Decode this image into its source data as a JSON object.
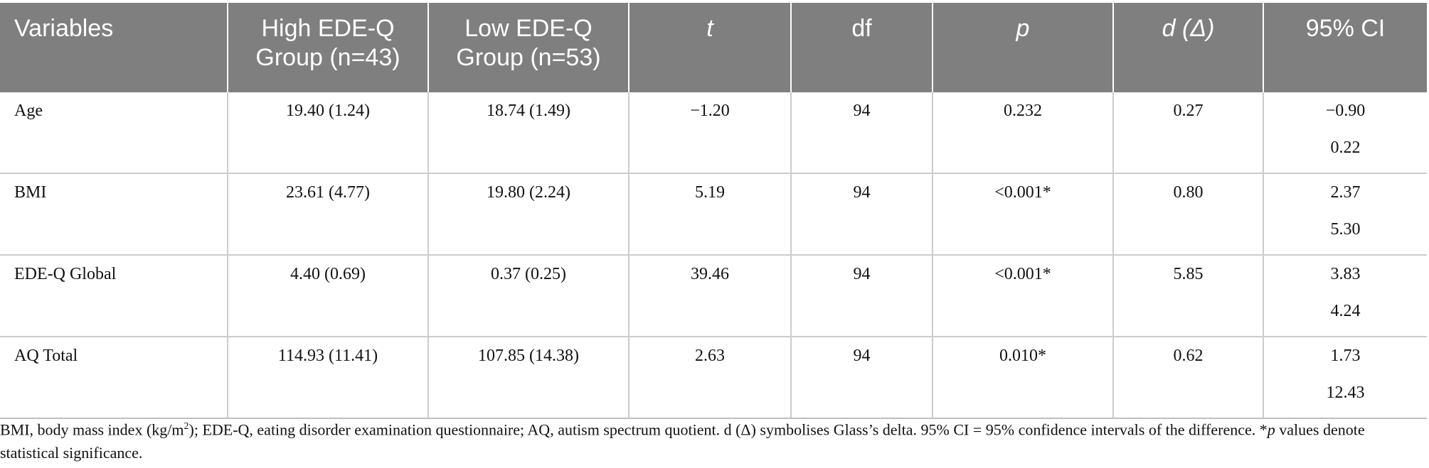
{
  "table": {
    "headers": [
      {
        "text": "Variables",
        "italic": false
      },
      {
        "text": "High EDE-Q Group (n=43)",
        "italic": false
      },
      {
        "text": "Low EDE-Q Group (n=53)",
        "italic": false
      },
      {
        "text": "t",
        "italic": true
      },
      {
        "text": "df",
        "italic": false
      },
      {
        "text": "p",
        "italic": true
      },
      {
        "text": "d (Δ)",
        "italic": true
      },
      {
        "text": "95% CI",
        "italic": false
      }
    ],
    "rows": [
      {
        "variable": "Age",
        "high": "19.40 (1.24)",
        "low": "18.74 (1.49)",
        "t": "−1.20",
        "df": "94",
        "p": "0.232",
        "d": "0.27",
        "ci_low": "−0.90",
        "ci_high": "0.22"
      },
      {
        "variable": "BMI",
        "high": "23.61 (4.77)",
        "low": "19.80 (2.24)",
        "t": "5.19",
        "df": "94",
        "p": "<0.001*",
        "d": "0.80",
        "ci_low": "2.37",
        "ci_high": "5.30"
      },
      {
        "variable": "EDE-Q Global",
        "high": "4.40 (0.69)",
        "low": "0.37 (0.25)",
        "t": "39.46",
        "df": "94",
        "p": "<0.001*",
        "d": "5.85",
        "ci_low": "3.83",
        "ci_high": "4.24"
      },
      {
        "variable": "AQ Total",
        "high": "114.93 (11.41)",
        "low": "107.85 (14.38)",
        "t": "2.63",
        "df": "94",
        "p": "0.010*",
        "d": "0.62",
        "ci_low": "1.73",
        "ci_high": "12.43"
      }
    ]
  },
  "footnote": {
    "part1": "BMI, body mass index (kg/m",
    "sup": "2",
    "part2": "); EDE-Q, eating disorder examination questionnaire; AQ, autism spectrum quotient. d (Δ) symbolises Glass’s delta. 95% CI = 95% confidence intervals of the difference. *",
    "p_italic": "p",
    "part3": " values denote statistical significance."
  },
  "colors": {
    "header_bg": "#7f7f7f",
    "header_text": "#ffffff",
    "grid": "#cccccc"
  }
}
